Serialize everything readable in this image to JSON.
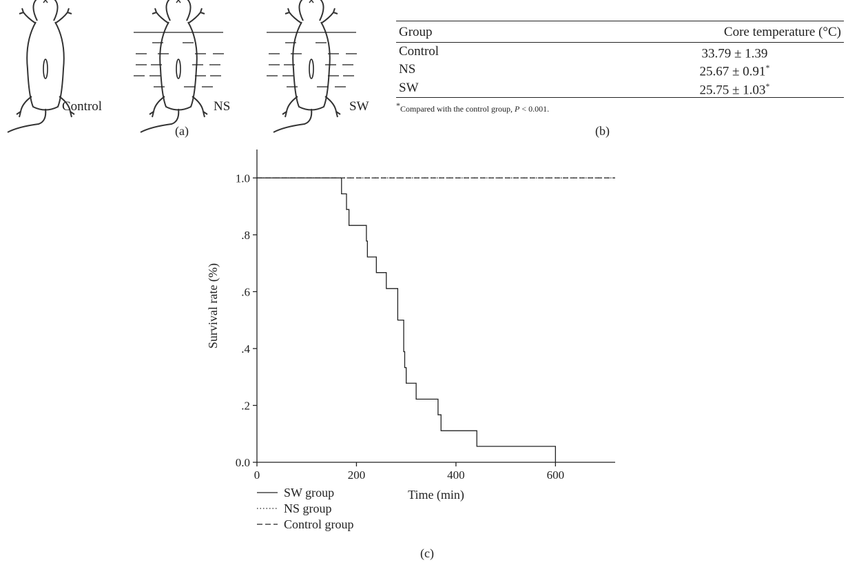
{
  "panel_a": {
    "tag": "(a)",
    "rats": [
      {
        "label": "Control"
      },
      {
        "label": "NS"
      },
      {
        "label": "SW"
      }
    ]
  },
  "panel_b": {
    "tag": "(b)",
    "headers": [
      "Group",
      "Core temperature (°C)"
    ],
    "rows": [
      {
        "group": "Control",
        "temp": "33.79 ± 1.39",
        "sig": ""
      },
      {
        "group": "NS",
        "temp": "25.67 ± 0.91",
        "sig": "*"
      },
      {
        "group": "SW",
        "temp": "25.75 ± 1.03",
        "sig": "*"
      }
    ],
    "footnote": {
      "mark": "*",
      "text": "Compared with the control group, ",
      "p": "P",
      "rest": " < 0.001."
    }
  },
  "panel_c": {
    "tag": "(c)"
  },
  "chart_data": {
    "type": "line",
    "xlabel": "Time (min)",
    "ylabel": "Survival rate (%)",
    "xlim": [
      0,
      720
    ],
    "ylim": [
      0,
      1.1
    ],
    "xticks": [
      0,
      200,
      400,
      600
    ],
    "xtick_labels": [
      "0",
      "200",
      "400",
      "600"
    ],
    "yticks": [
      0,
      0.2,
      0.4,
      0.6,
      0.8,
      1.0
    ],
    "ytick_labels": [
      "0.0",
      ".2",
      ".4",
      ".6",
      ".8",
      "1.0"
    ],
    "legend_position": "below",
    "series": [
      {
        "name": "SW group",
        "style": "solid",
        "step": true,
        "x": [
          0,
          170,
          180,
          185,
          220,
          222,
          240,
          260,
          283,
          295,
          297,
          300,
          320,
          364,
          370,
          442,
          600,
          600
        ],
        "y": [
          1.0,
          0.944,
          0.889,
          0.833,
          0.778,
          0.722,
          0.667,
          0.611,
          0.5,
          0.389,
          0.333,
          0.278,
          0.222,
          0.167,
          0.111,
          0.056,
          0.056,
          0.0
        ]
      },
      {
        "name": "NS group",
        "style": "dotted",
        "step": true,
        "x": [
          0,
          720
        ],
        "y": [
          1.0,
          1.0
        ]
      },
      {
        "name": "Control group",
        "style": "dashed",
        "step": true,
        "x": [
          0,
          720
        ],
        "y": [
          1.0,
          1.0
        ]
      }
    ]
  }
}
